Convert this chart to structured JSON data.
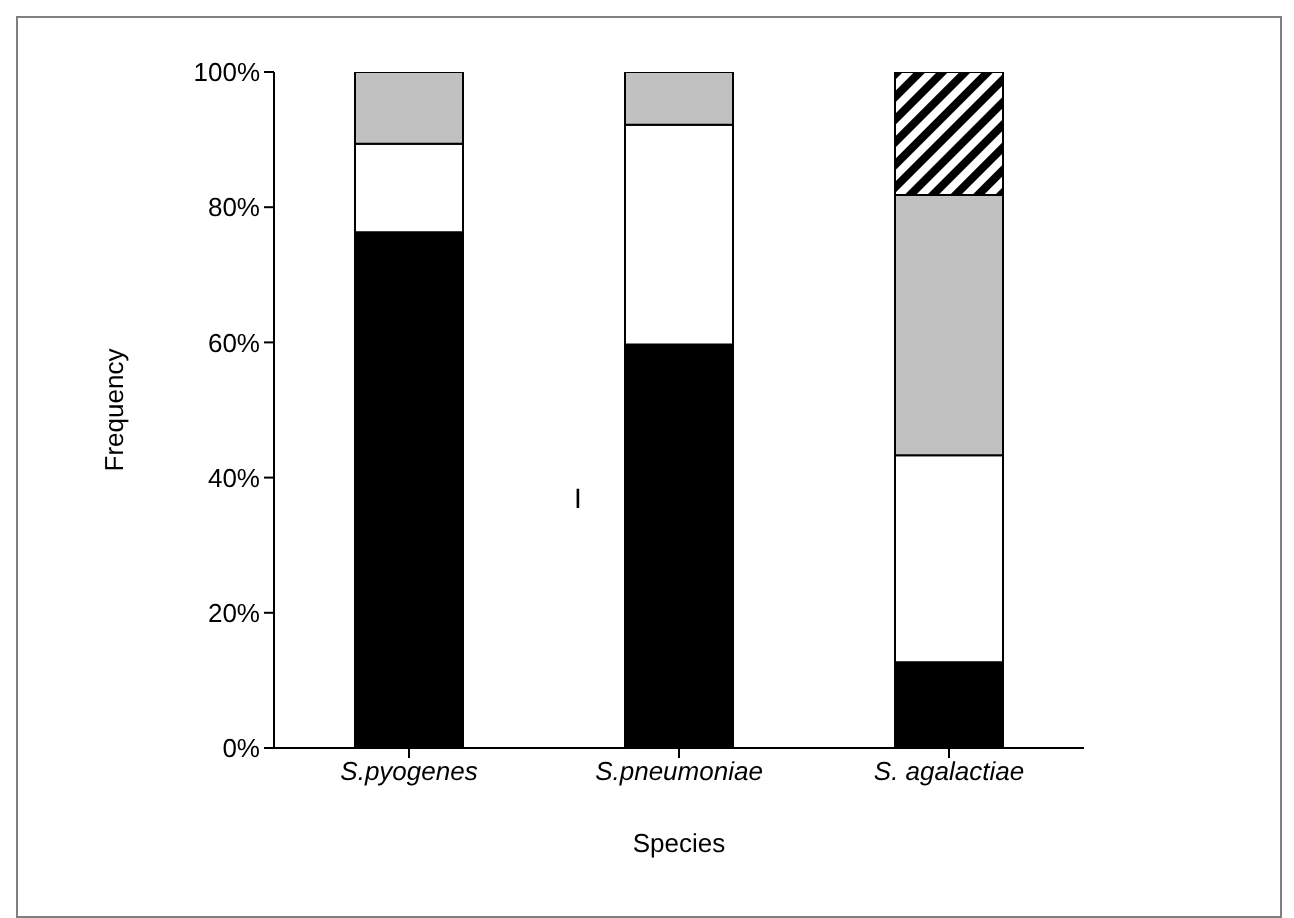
{
  "chart_data": {
    "type": "bar",
    "stacked": true,
    "xlabel": "Species",
    "ylabel": "Frequency",
    "categories": [
      "S.pyogenes",
      "S.pneumoniae",
      "S. agalactiae"
    ],
    "series": [
      {
        "color": "#000000",
        "values": [
          76.3,
          59.7,
          12.7
        ]
      },
      {
        "color": "#ffffff",
        "values": [
          13.1,
          32.5,
          30.6
        ]
      },
      {
        "color": "#c0c0c0",
        "values": [
          10.6,
          7.8,
          38.5
        ]
      },
      {
        "color": "#000000",
        "values": [
          null,
          null,
          18.2
        ]
      }
    ],
    "ylim": [
      0,
      100
    ],
    "yticks": [
      {
        "value": 0,
        "label": "0%"
      },
      {
        "value": 20,
        "label": "20%"
      },
      {
        "value": 40,
        "label": "40%"
      },
      {
        "value": 60,
        "label": "60%"
      },
      {
        "value": 80,
        "label": "80%"
      },
      {
        "value": 100,
        "label": "100%"
      }
    ],
    "annotations": [
      "I"
    ],
    "grid": false,
    "legend": false
  }
}
